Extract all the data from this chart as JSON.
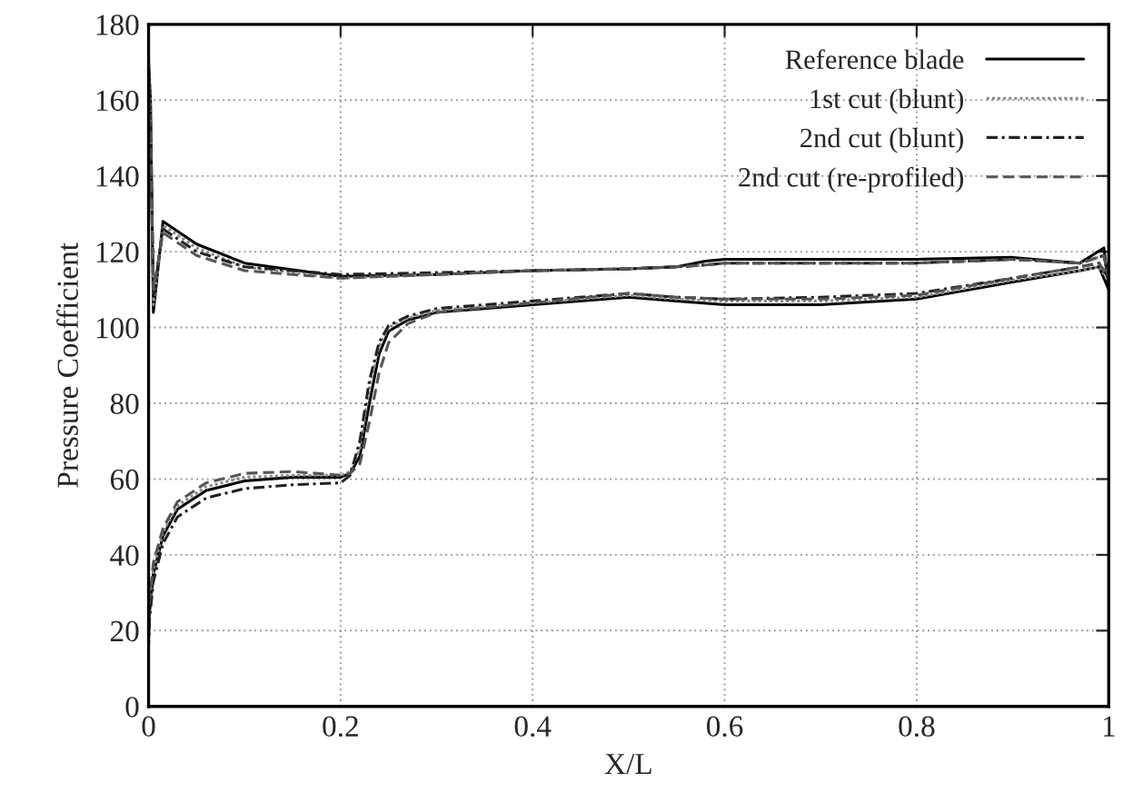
{
  "chart_data": {
    "type": "line",
    "xlabel": "X/L",
    "ylabel": "Pressure Coefficient",
    "x": [
      0,
      0.002,
      0.005,
      0.015,
      0.05,
      0.1,
      0.2,
      0.3,
      0.4,
      0.5,
      0.55,
      0.58,
      0.6,
      0.7,
      0.8,
      0.9,
      0.97,
      0.995,
      1.0,
      0.99,
      0.97,
      0.9,
      0.8,
      0.7,
      0.6,
      0.55,
      0.5,
      0.4,
      0.3,
      0.27,
      0.25,
      0.24,
      0.23,
      0.22,
      0.21,
      0.2,
      0.15,
      0.1,
      0.06,
      0.03,
      0.015,
      0.005,
      0.001,
      0
    ],
    "series": [
      {
        "name": "Reference blade",
        "color": "#000000",
        "line_style": "solid",
        "values": [
          170,
          160,
          104,
          128,
          122,
          117,
          113.5,
          114,
          115,
          115.5,
          116,
          117.5,
          118,
          118,
          118,
          118.5,
          117,
          121,
          110,
          116,
          115,
          112,
          107.5,
          106,
          106,
          107,
          108,
          106,
          104,
          102,
          99,
          93,
          80,
          66,
          61.5,
          60.5,
          60.5,
          59.5,
          57,
          52,
          45,
          35,
          25,
          18
        ]
      },
      {
        "name": "1st cut (blunt)",
        "color": "#888888",
        "line_style": "dotted",
        "values": [
          168,
          158,
          106,
          127,
          121,
          116,
          113,
          114,
          115,
          115.5,
          116,
          116.5,
          117,
          117,
          117,
          118,
          117,
          119,
          112,
          116,
          115,
          112.5,
          108,
          107,
          107,
          107.5,
          108.5,
          106.5,
          104.5,
          102.5,
          100,
          95,
          84,
          68,
          62,
          61,
          61,
          60.5,
          58,
          53,
          46,
          36,
          26,
          19
        ]
      },
      {
        "name": "2nd cut (blunt)",
        "color": "#222222",
        "line_style": "dashdot",
        "values": [
          166,
          155,
          108,
          126,
          120,
          116,
          114,
          114.5,
          115,
          115.5,
          116,
          116.5,
          117,
          117,
          117,
          118,
          117,
          119,
          113,
          117,
          116,
          113,
          109,
          108,
          107.5,
          108,
          109,
          107,
          105,
          103,
          100.5,
          96,
          86,
          70,
          61,
          59,
          58.5,
          57.5,
          55,
          50,
          43,
          33,
          23,
          16
        ]
      },
      {
        "name": "2nd cut (re-profiled)",
        "color": "#555555",
        "line_style": "dashed",
        "values": [
          165,
          150,
          110,
          125,
          119,
          115,
          113,
          114,
          115,
          115.5,
          116,
          116.5,
          117,
          117,
          117,
          118,
          117,
          119,
          113,
          117,
          116,
          113,
          108.5,
          107.5,
          107.5,
          108,
          109,
          106.5,
          104,
          101,
          96,
          88,
          75,
          64,
          61.5,
          61,
          62,
          61.5,
          59,
          54,
          47,
          38,
          28,
          20
        ]
      }
    ],
    "xlim": [
      0,
      1
    ],
    "xticks": [
      0,
      0.2,
      0.4,
      0.6,
      0.8,
      1
    ],
    "ylim": [
      0,
      180
    ],
    "yticks": [
      0,
      20,
      40,
      60,
      80,
      100,
      120,
      140,
      160,
      180
    ],
    "grid": true,
    "legend": "top right"
  }
}
